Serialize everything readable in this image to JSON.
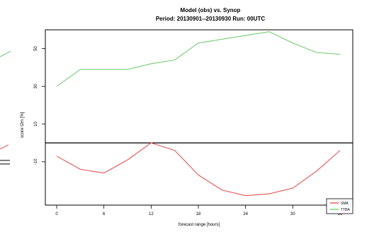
{
  "chart_data": {
    "type": "line",
    "title": "Model (obs) vs. Synop",
    "subtitle": "Period: 20130901--20130930 Run: 00UTC",
    "xlabel": "forecast range [hours]",
    "ylabel": "score t2m [%]",
    "x": [
      0,
      3,
      6,
      9,
      12,
      15,
      18,
      21,
      24,
      27,
      30,
      33,
      36
    ],
    "xticks": [
      "0",
      "6",
      "12",
      "18",
      "24",
      "30",
      "36"
    ],
    "xlim": [
      0,
      36
    ],
    "yticks": [
      "50",
      "30",
      "10",
      "-10"
    ],
    "series": [
      {
        "name": "SMA",
        "color": "#e45555",
        "values": [
          -7,
          -14,
          -16,
          -9,
          0,
          -4,
          -17,
          -25,
          -28,
          -27,
          -24,
          -15,
          -4
        ]
      },
      {
        "name": "TTBA",
        "color": "#77cc77",
        "values": [
          30,
          39,
          39,
          39,
          42,
          44,
          53,
          55,
          57,
          59,
          53,
          48,
          47
        ]
      }
    ],
    "ylim": [
      -33,
      60
    ],
    "zero_line": 0,
    "legend_position": "bottom-right",
    "grid": false
  }
}
